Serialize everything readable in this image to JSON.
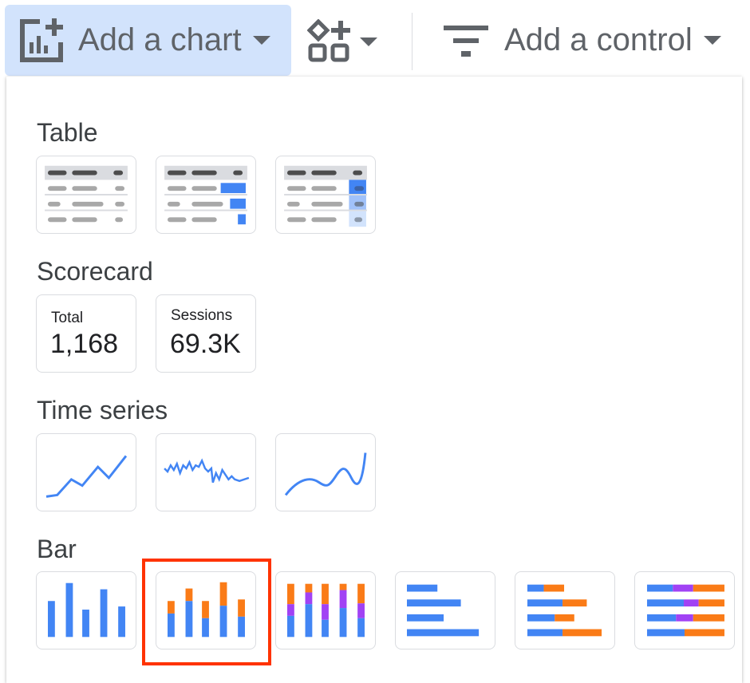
{
  "toolbar": {
    "add_chart": "Add a chart",
    "add_control": "Add a control",
    "icons": [
      "add-chart-icon",
      "add-component-icon",
      "filter-icon"
    ]
  },
  "sections": {
    "table": "Table",
    "scorecard": "Scorecard",
    "time_series": "Time series",
    "bar": "Bar"
  },
  "scorecards": [
    {
      "label": "Total",
      "value": "1,168"
    },
    {
      "label": "Sessions",
      "value": "69.3K"
    }
  ],
  "colors": {
    "blue": "#4285f4",
    "orange": "#fa7b17",
    "purple": "#a142f4",
    "highlight": "#d2e3fc",
    "selection": "#ff3300"
  },
  "selected_chart": "stacked-column"
}
